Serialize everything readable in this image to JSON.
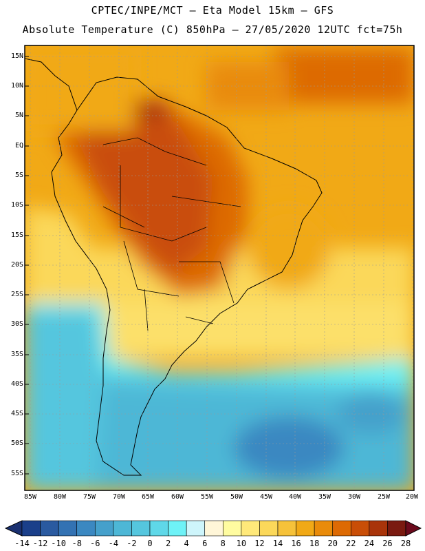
{
  "header": {
    "line1": "CPTEC/INPE/MCT –  Eta Model 15km – GFS",
    "line2": "Absolute Temperature (C) 850hPa – 27/05/2020 12UTC fct=75h"
  },
  "map": {
    "lat_labels": [
      "15N",
      "10N",
      "5N",
      "EQ",
      "5S",
      "10S",
      "15S",
      "20S",
      "25S",
      "30S",
      "35S",
      "40S",
      "45S",
      "50S",
      "55S"
    ],
    "lon_labels": [
      "85W",
      "80W",
      "75W",
      "70W",
      "65W",
      "60W",
      "55W",
      "50W",
      "45W",
      "40W",
      "35W",
      "30W",
      "25W",
      "20W"
    ]
  },
  "colorbar": {
    "labels": [
      "-14",
      "-12",
      "-10",
      "-8",
      "-6",
      "-4",
      "-2",
      "0",
      "2",
      "4",
      "6",
      "8",
      "10",
      "12",
      "14",
      "16",
      "18",
      "20",
      "22",
      "24",
      "26",
      "28"
    ],
    "colors": [
      "#1a3f8a",
      "#2a5aa0",
      "#3372b3",
      "#3b88c1",
      "#45a0cb",
      "#4db7d6",
      "#55c6de",
      "#5fd8e8",
      "#6ef2f7",
      "#cef5fb",
      "#fff6d8",
      "#fffca0",
      "#ffe97a",
      "#fbd85a",
      "#f6c23a",
      "#f1a916",
      "#e98b0a",
      "#dd6a04",
      "#c94e07",
      "#a9340a",
      "#7a1a10"
    ]
  }
}
